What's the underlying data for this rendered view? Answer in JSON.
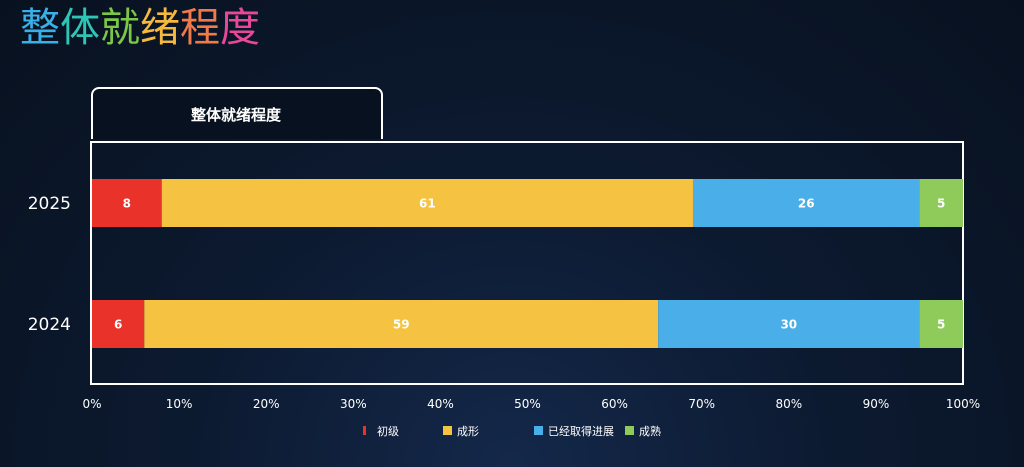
{
  "page": {
    "title": "整体就绪程度",
    "title_colors": [
      "#3ab0e8",
      "#2ec4b6",
      "#7cc846",
      "#f5b93e",
      "#f07a4a",
      "#e8489a"
    ]
  },
  "panel": {
    "tab_label": "整体就绪程度"
  },
  "chart_data": {
    "type": "bar",
    "orientation": "horizontal",
    "stacked": true,
    "title": "整体就绪程度",
    "categories": [
      "2025",
      "2024"
    ],
    "series": [
      {
        "name": "初级",
        "values": [
          8,
          6
        ],
        "color": "#e8322a"
      },
      {
        "name": "成形",
        "values": [
          61,
          59
        ],
        "color": "#f5c242"
      },
      {
        "name": "已经取得进展",
        "values": [
          26,
          30
        ],
        "color": "#4aaee8"
      },
      {
        "name": "成熟",
        "values": [
          5,
          5
        ],
        "color": "#8ecb5a"
      }
    ],
    "xlim": [
      0,
      100
    ],
    "xticks": [
      "0%",
      "10%",
      "20%",
      "30%",
      "40%",
      "50%",
      "60%",
      "70%",
      "80%",
      "90%",
      "100%"
    ],
    "xlabel": "",
    "ylabel": "",
    "grid": false,
    "legend_position": "bottom"
  }
}
